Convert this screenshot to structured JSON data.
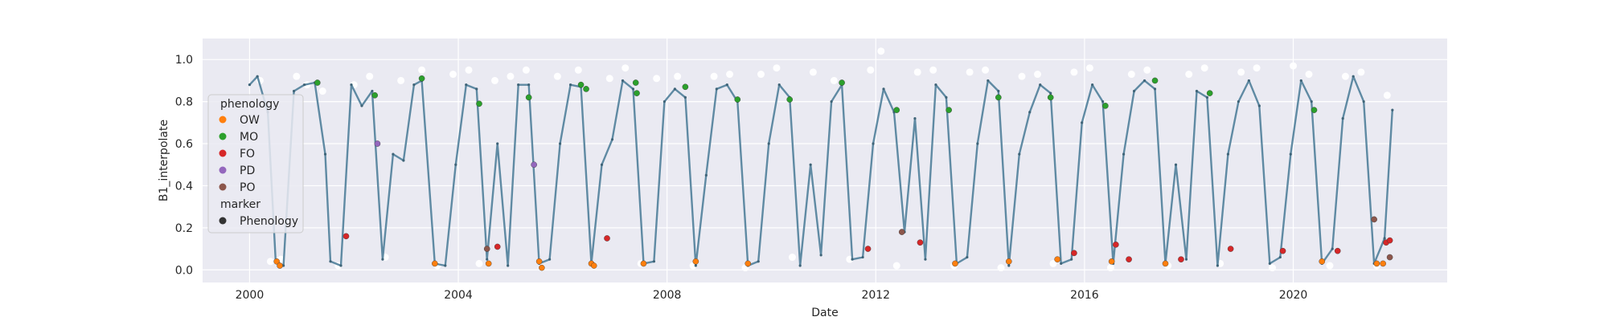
{
  "chart_data": {
    "type": "scatter",
    "xlabel": "Date",
    "ylabel": "B1_interpolate",
    "xlim": [
      1999.1,
      2022.95
    ],
    "ylim": [
      -0.06,
      1.1
    ],
    "x_ticks": [
      2000,
      2004,
      2008,
      2012,
      2016,
      2020
    ],
    "y_ticks": [
      0.0,
      0.2,
      0.4,
      0.6,
      0.8,
      1.0
    ],
    "x_tick_labels": [
      "2000",
      "2004",
      "2008",
      "2012",
      "2016",
      "2020"
    ],
    "y_tick_labels": [
      "0.0",
      "0.2",
      "0.4",
      "0.6",
      "0.8",
      "1.0"
    ],
    "grid": true,
    "background": "#eaeaf2",
    "legend": {
      "placement": "upper-left",
      "hue_title": "phenology",
      "marker_title": "marker",
      "hue_entries": [
        {
          "label": "OW",
          "color": "#ff7f0e"
        },
        {
          "label": "MO",
          "color": "#2ca02c"
        },
        {
          "label": "FO",
          "color": "#d62728"
        },
        {
          "label": "PD",
          "color": "#9467bd"
        },
        {
          "label": "PO",
          "color": "#8c564b"
        }
      ],
      "marker_entries": [
        {
          "label": "Phenology",
          "color": "#333333"
        }
      ]
    },
    "series": [
      {
        "color": "#ffffff",
        "style": "raw-observations",
        "x": [
          2000.2,
          2000.4,
          2000.6,
          2000.9,
          2001.1,
          2001.4,
          2001.7,
          2002.0,
          2002.3,
          2002.6,
          2002.9,
          2003.3,
          2003.6,
          2003.9,
          2004.2,
          2004.4,
          2004.7,
          2005.0,
          2005.3,
          2005.6,
          2005.9,
          2006.3,
          2006.6,
          2006.9,
          2007.2,
          2007.5,
          2007.8,
          2008.2,
          2008.5,
          2008.9,
          2009.2,
          2009.5,
          2009.8,
          2010.1,
          2010.4,
          2010.8,
          2011.2,
          2011.5,
          2011.9,
          2012.1,
          2012.4,
          2012.8,
          2013.1,
          2013.5,
          2013.8,
          2014.1,
          2014.4,
          2014.8,
          2015.1,
          2015.4,
          2015.8,
          2016.1,
          2016.5,
          2016.9,
          2017.2,
          2017.6,
          2018.0,
          2018.3,
          2018.6,
          2019.0,
          2019.3,
          2019.6,
          2020.0,
          2020.3,
          2020.7,
          2021.0,
          2021.3,
          2021.6,
          2021.8
        ],
        "y": [
          0.9,
          0.04,
          0.05,
          0.92,
          0.88,
          0.85,
          0.02,
          0.88,
          0.92,
          0.06,
          0.9,
          0.95,
          0.02,
          0.93,
          0.95,
          0.03,
          0.9,
          0.92,
          0.95,
          0.01,
          0.92,
          0.95,
          0.02,
          0.91,
          0.96,
          0.03,
          0.91,
          0.92,
          0.02,
          0.92,
          0.93,
          0.01,
          0.93,
          0.96,
          0.06,
          0.94,
          0.9,
          0.05,
          0.95,
          1.04,
          0.02,
          0.94,
          0.95,
          0.02,
          0.94,
          0.95,
          0.01,
          0.92,
          0.93,
          0.03,
          0.94,
          0.96,
          0.01,
          0.93,
          0.95,
          0.02,
          0.93,
          0.96,
          0.03,
          0.94,
          0.96,
          0.01,
          0.97,
          0.93,
          0.02,
          0.92,
          0.94,
          0.02,
          0.83
        ]
      },
      {
        "color": "#5f8aa3",
        "style": "interpolated-line",
        "x": [
          2000.0,
          2000.15,
          2000.35,
          2000.5,
          2000.65,
          2000.85,
          2001.05,
          2001.25,
          2001.45,
          2001.55,
          2001.75,
          2001.95,
          2002.15,
          2002.35,
          2002.55,
          2002.75,
          2002.95,
          2003.15,
          2003.3,
          2003.55,
          2003.75,
          2003.95,
          2004.15,
          2004.35,
          2004.55,
          2004.75,
          2004.95,
          2005.15,
          2005.35,
          2005.55,
          2005.75,
          2005.95,
          2006.15,
          2006.35,
          2006.55,
          2006.75,
          2006.95,
          2007.15,
          2007.35,
          2007.55,
          2007.75,
          2007.95,
          2008.15,
          2008.35,
          2008.55,
          2008.75,
          2008.95,
          2009.15,
          2009.35,
          2009.55,
          2009.75,
          2009.95,
          2010.15,
          2010.35,
          2010.55,
          2010.75,
          2010.95,
          2011.15,
          2011.35,
          2011.55,
          2011.75,
          2011.95,
          2012.15,
          2012.35,
          2012.55,
          2012.75,
          2012.95,
          2013.15,
          2013.35,
          2013.55,
          2013.75,
          2013.95,
          2014.15,
          2014.35,
          2014.55,
          2014.75,
          2014.95,
          2015.15,
          2015.35,
          2015.55,
          2015.75,
          2015.95,
          2016.15,
          2016.35,
          2016.55,
          2016.75,
          2016.95,
          2017.15,
          2017.35,
          2017.55,
          2017.75,
          2017.95,
          2018.15,
          2018.35,
          2018.55,
          2018.75,
          2018.95,
          2019.15,
          2019.35,
          2019.55,
          2019.75,
          2019.95,
          2020.15,
          2020.35,
          2020.55,
          2020.75,
          2020.95,
          2021.15,
          2021.35,
          2021.55,
          2021.75,
          2021.9
        ],
        "y": [
          0.88,
          0.92,
          0.75,
          0.04,
          0.02,
          0.85,
          0.88,
          0.89,
          0.55,
          0.04,
          0.02,
          0.88,
          0.78,
          0.85,
          0.05,
          0.55,
          0.52,
          0.88,
          0.9,
          0.03,
          0.02,
          0.5,
          0.88,
          0.86,
          0.05,
          0.6,
          0.02,
          0.88,
          0.88,
          0.03,
          0.05,
          0.6,
          0.88,
          0.87,
          0.03,
          0.5,
          0.62,
          0.9,
          0.86,
          0.03,
          0.04,
          0.8,
          0.86,
          0.82,
          0.02,
          0.45,
          0.86,
          0.88,
          0.8,
          0.02,
          0.04,
          0.6,
          0.88,
          0.82,
          0.02,
          0.5,
          0.07,
          0.8,
          0.88,
          0.05,
          0.06,
          0.6,
          0.86,
          0.75,
          0.18,
          0.72,
          0.05,
          0.88,
          0.82,
          0.03,
          0.06,
          0.6,
          0.9,
          0.85,
          0.02,
          0.55,
          0.75,
          0.88,
          0.84,
          0.03,
          0.05,
          0.7,
          0.88,
          0.8,
          0.03,
          0.55,
          0.85,
          0.9,
          0.86,
          0.03,
          0.5,
          0.05,
          0.85,
          0.82,
          0.02,
          0.55,
          0.8,
          0.9,
          0.78,
          0.03,
          0.06,
          0.55,
          0.9,
          0.8,
          0.03,
          0.1,
          0.72,
          0.92,
          0.8,
          0.03,
          0.15,
          0.76
        ]
      },
      {
        "color": "#ff7f0e",
        "style": "phenology-OW",
        "x": [
          2000.52,
          2000.58,
          2003.55,
          2004.58,
          2005.55,
          2005.6,
          2006.55,
          2006.6,
          2007.55,
          2008.55,
          2009.55,
          2013.52,
          2014.55,
          2015.48,
          2016.52,
          2017.55,
          2020.55,
          2021.6,
          2021.72
        ],
        "y": [
          0.04,
          0.02,
          0.03,
          0.03,
          0.04,
          0.01,
          0.03,
          0.02,
          0.03,
          0.04,
          0.03,
          0.03,
          0.04,
          0.05,
          0.04,
          0.03,
          0.04,
          0.03,
          0.03
        ]
      },
      {
        "color": "#2ca02c",
        "style": "phenology-MO",
        "x": [
          2001.3,
          2002.4,
          2003.3,
          2004.4,
          2005.35,
          2006.35,
          2006.45,
          2007.4,
          2007.42,
          2008.35,
          2009.35,
          2010.35,
          2011.35,
          2012.4,
          2013.4,
          2014.35,
          2015.35,
          2016.4,
          2017.35,
          2018.4,
          2020.4
        ],
        "y": [
          0.89,
          0.83,
          0.91,
          0.79,
          0.82,
          0.88,
          0.86,
          0.89,
          0.84,
          0.87,
          0.81,
          0.81,
          0.89,
          0.76,
          0.76,
          0.82,
          0.82,
          0.78,
          0.9,
          0.84,
          0.76
        ]
      },
      {
        "color": "#d62728",
        "style": "phenology-FO",
        "x": [
          2001.85,
          2004.75,
          2006.85,
          2011.85,
          2012.85,
          2015.8,
          2016.6,
          2016.85,
          2017.85,
          2018.8,
          2019.8,
          2020.85,
          2021.78,
          2021.85
        ],
        "y": [
          0.16,
          0.11,
          0.15,
          0.1,
          0.13,
          0.08,
          0.12,
          0.05,
          0.05,
          0.1,
          0.09,
          0.09,
          0.13,
          0.14
        ]
      },
      {
        "color": "#9467bd",
        "style": "phenology-PD",
        "x": [
          2002.45,
          2005.45
        ],
        "y": [
          0.6,
          0.5
        ]
      },
      {
        "color": "#8c564b",
        "style": "phenology-PO",
        "x": [
          2004.55,
          2012.5,
          2021.55,
          2021.85
        ],
        "y": [
          0.1,
          0.18,
          0.24,
          0.06
        ]
      }
    ]
  }
}
